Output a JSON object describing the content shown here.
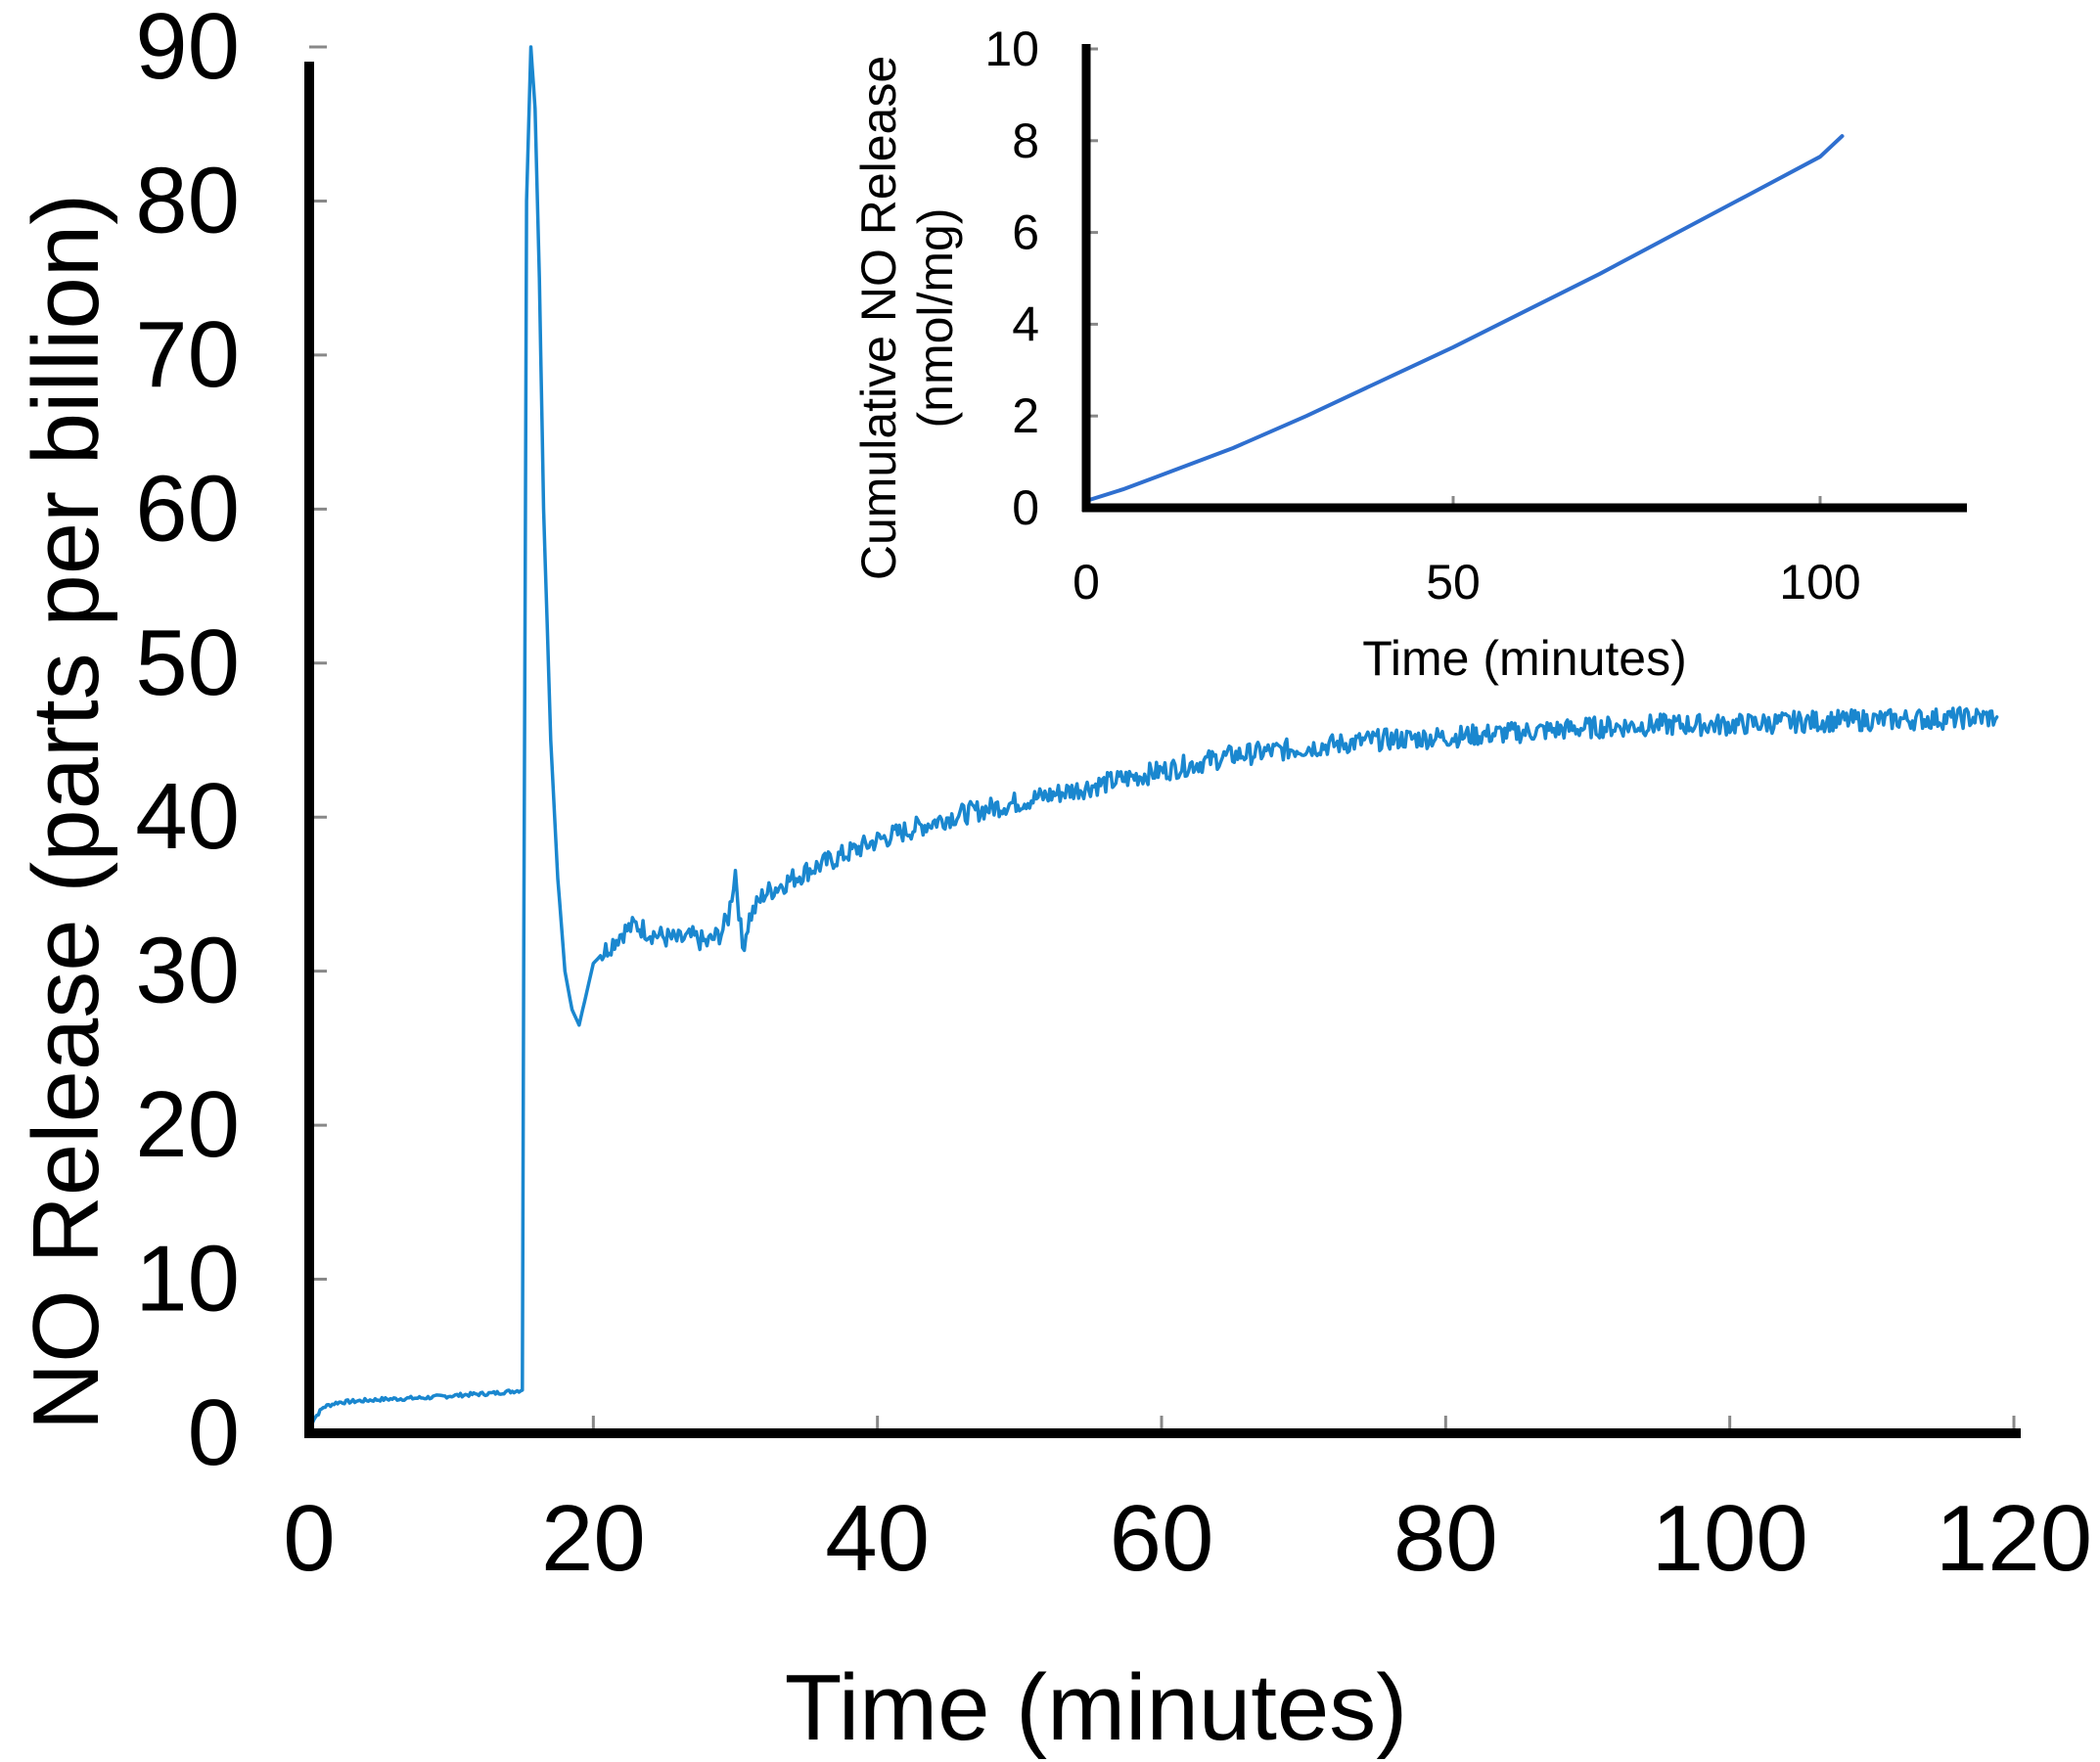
{
  "colors": {
    "main_series": "#1a87cf",
    "inset_series": "#2f6fcf",
    "axis": "#000000"
  },
  "chart_data": [
    {
      "id": "main",
      "type": "line",
      "title": "",
      "xlabel": "Time (minutes)",
      "ylabel": "NO Release (parts per billion)",
      "xlim": [
        0,
        120
      ],
      "ylim": [
        0,
        90
      ],
      "xticks": [
        0,
        20,
        40,
        60,
        80,
        100,
        120
      ],
      "yticks": [
        0,
        10,
        20,
        30,
        40,
        50,
        60,
        70,
        80,
        90
      ],
      "grid": false,
      "legend": "none",
      "series": [
        {
          "name": "NO Release",
          "x": [
            0,
            0.3,
            1,
            2,
            5,
            8,
            11,
            13,
            15,
            15.1,
            15.3,
            15.6,
            15.9,
            16.2,
            16.5,
            17,
            17.5,
            18,
            18.5,
            19,
            19.5,
            20,
            21,
            22,
            23,
            24,
            25,
            26,
            27,
            28,
            29,
            29.5,
            30,
            30.5,
            31,
            32,
            35,
            40,
            45,
            50,
            55,
            60,
            65,
            70,
            75,
            80,
            85,
            90,
            95,
            100,
            105,
            110,
            115,
            118.8
          ],
          "y": [
            0.3,
            0.9,
            1.7,
            2.0,
            2.2,
            2.3,
            2.5,
            2.6,
            2.8,
            31,
            80,
            90,
            86,
            75,
            60,
            45,
            36,
            30,
            27.5,
            26.5,
            28.5,
            30.5,
            31.5,
            32.5,
            33,
            32.5,
            32.2,
            32,
            32.2,
            31.8,
            32.5,
            33.5,
            36.5,
            31.5,
            33.5,
            35,
            36.5,
            38.5,
            40,
            41,
            42,
            43,
            44,
            44.5,
            45,
            45.2,
            45.5,
            45.8,
            46,
            46,
            46.2,
            46.3,
            46.4,
            46.5
          ]
        }
      ]
    },
    {
      "id": "inset",
      "type": "line",
      "title": "",
      "xlabel": "Time (minutes)",
      "ylabel_line1": "Cumulative NO Release",
      "ylabel_line2": "(nmol/mg)",
      "xlim": [
        0,
        120
      ],
      "ylim": [
        0,
        10
      ],
      "xticks": [
        0,
        50,
        100
      ],
      "yticks": [
        0,
        2,
        4,
        6,
        8,
        10
      ],
      "grid": false,
      "legend": "none",
      "series": [
        {
          "name": "Cumulative NO Release",
          "x": [
            0,
            5,
            10,
            15,
            20,
            30,
            40,
            50,
            60,
            70,
            80,
            90,
            100,
            103
          ],
          "y": [
            0.15,
            0.4,
            0.7,
            1.0,
            1.3,
            2.0,
            2.75,
            3.5,
            4.3,
            5.1,
            5.95,
            6.8,
            7.65,
            8.1
          ]
        }
      ]
    }
  ]
}
